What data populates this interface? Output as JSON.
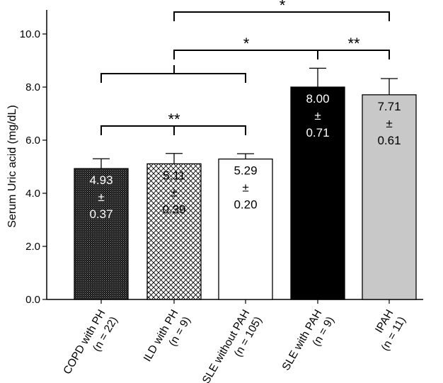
{
  "chart_data": {
    "type": "bar",
    "ylabel": "Serum Uric acid (mg/dL)",
    "ylim": [
      0,
      11
    ],
    "yticks": [
      "0.0",
      "2.0",
      "4.0",
      "6.0",
      "8.0",
      "10.0"
    ],
    "categories": [
      {
        "name": "COPD with PH",
        "n": "(n = 22)"
      },
      {
        "name": "ILD with PH",
        "n": "(n = 9)"
      },
      {
        "name": "SLE without PAH",
        "n": "(n = 105)"
      },
      {
        "name": "SLE with PAH",
        "n": "(n = 9)"
      },
      {
        "name": "IPAH",
        "n": "(n = 11)"
      }
    ],
    "values": [
      4.93,
      5.11,
      5.29,
      8.0,
      7.71
    ],
    "errors": [
      0.37,
      0.39,
      0.2,
      0.71,
      0.61
    ],
    "value_labels": [
      [
        "4.93",
        "±",
        "0.37"
      ],
      [
        "5.11",
        "±",
        "0.39"
      ],
      [
        "5.29",
        "±",
        "0.20"
      ],
      [
        "8.00",
        "±",
        "0.71"
      ],
      [
        "7.71",
        "±",
        "0.61"
      ]
    ],
    "bar_fills": [
      "dense-dots",
      "crosshatch",
      "#ffffff",
      "#000000",
      "#c8c8c8"
    ],
    "label_colors": [
      "#ffffff",
      "#000000",
      "#000000",
      "#ffffff",
      "#000000"
    ],
    "significance": [
      {
        "from": [
          0,
          1,
          2
        ],
        "to": [
          0,
          1,
          2
        ],
        "label": "**"
      },
      {
        "from": [
          0,
          1,
          2
        ],
        "to": [
          3
        ],
        "label": "*"
      },
      {
        "from": [
          3
        ],
        "to": [
          4
        ],
        "label": "**"
      },
      {
        "from": [
          1
        ],
        "to": [
          4
        ],
        "label": "*"
      }
    ]
  }
}
